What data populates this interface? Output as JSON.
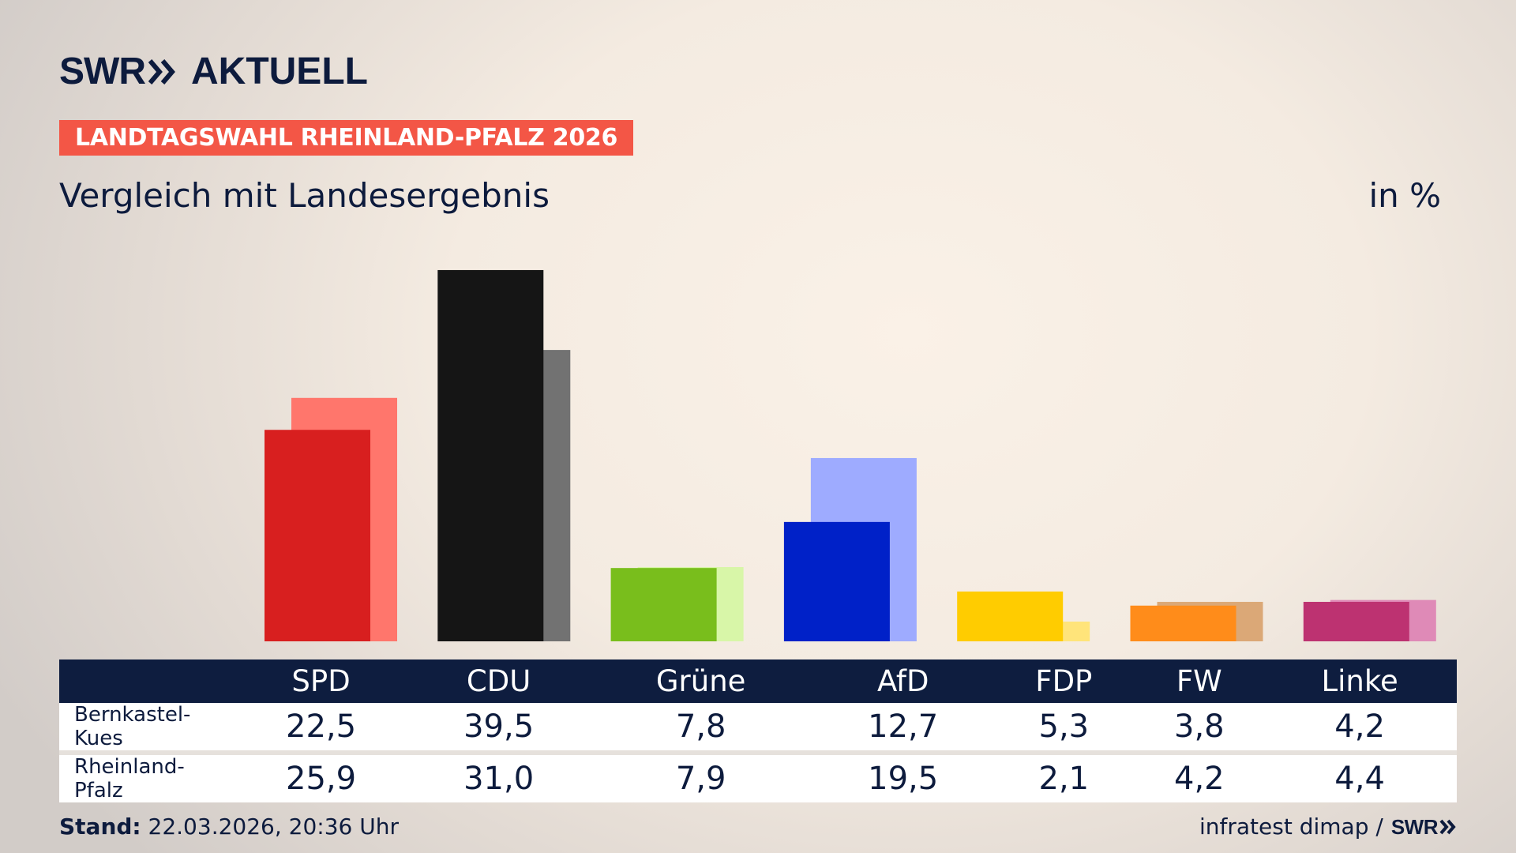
{
  "brand": {
    "logo_primary": "SWR",
    "logo_secondary": "AKTUELL",
    "arrow_icon": "double-chevron-right-icon",
    "color_dark": "#0d1b3d"
  },
  "header": {
    "badge": "LANDTAGSWAHL RHEINLAND-PFALZ 2026",
    "badge_color": "#f35646",
    "subtitle": "Vergleich mit Landesergebnis",
    "unit": "in %"
  },
  "chart_data": {
    "type": "bar",
    "categories": [
      "SPD",
      "CDU",
      "Grüne",
      "AfD",
      "FDP",
      "FW",
      "Linke"
    ],
    "series": [
      {
        "name": "Bernkastel-Kues",
        "values": [
          22.5,
          39.5,
          7.8,
          12.7,
          5.3,
          3.8,
          4.2
        ],
        "labels": [
          "22,5",
          "39,5",
          "7,8",
          "12,7",
          "5,3",
          "3,8",
          "4,2"
        ],
        "colors": [
          "#d81f1f",
          "#151515",
          "#79be1c",
          "#0021c8",
          "#ffcc00",
          "#ff8c1a",
          "#bd3271"
        ]
      },
      {
        "name": "Rheinland-Pfalz",
        "values": [
          25.9,
          31.0,
          7.9,
          19.5,
          2.1,
          4.2,
          4.4
        ],
        "labels": [
          "25,9",
          "31,0",
          "7,9",
          "19,5",
          "2,1",
          "4,2",
          "4,4"
        ],
        "colors": [
          "#ff766c",
          "#727272",
          "#d8f6a8",
          "#9eabff",
          "#ffe47a",
          "#dba877",
          "#df8ab7"
        ]
      }
    ],
    "ylim": [
      0,
      40
    ],
    "grid": false,
    "legend": "table-below"
  },
  "footer": {
    "stand_label": "Stand:",
    "stand_value": "22.03.2026, 20:36 Uhr",
    "source": "infratest dimap /",
    "source_logo": "SWR"
  }
}
